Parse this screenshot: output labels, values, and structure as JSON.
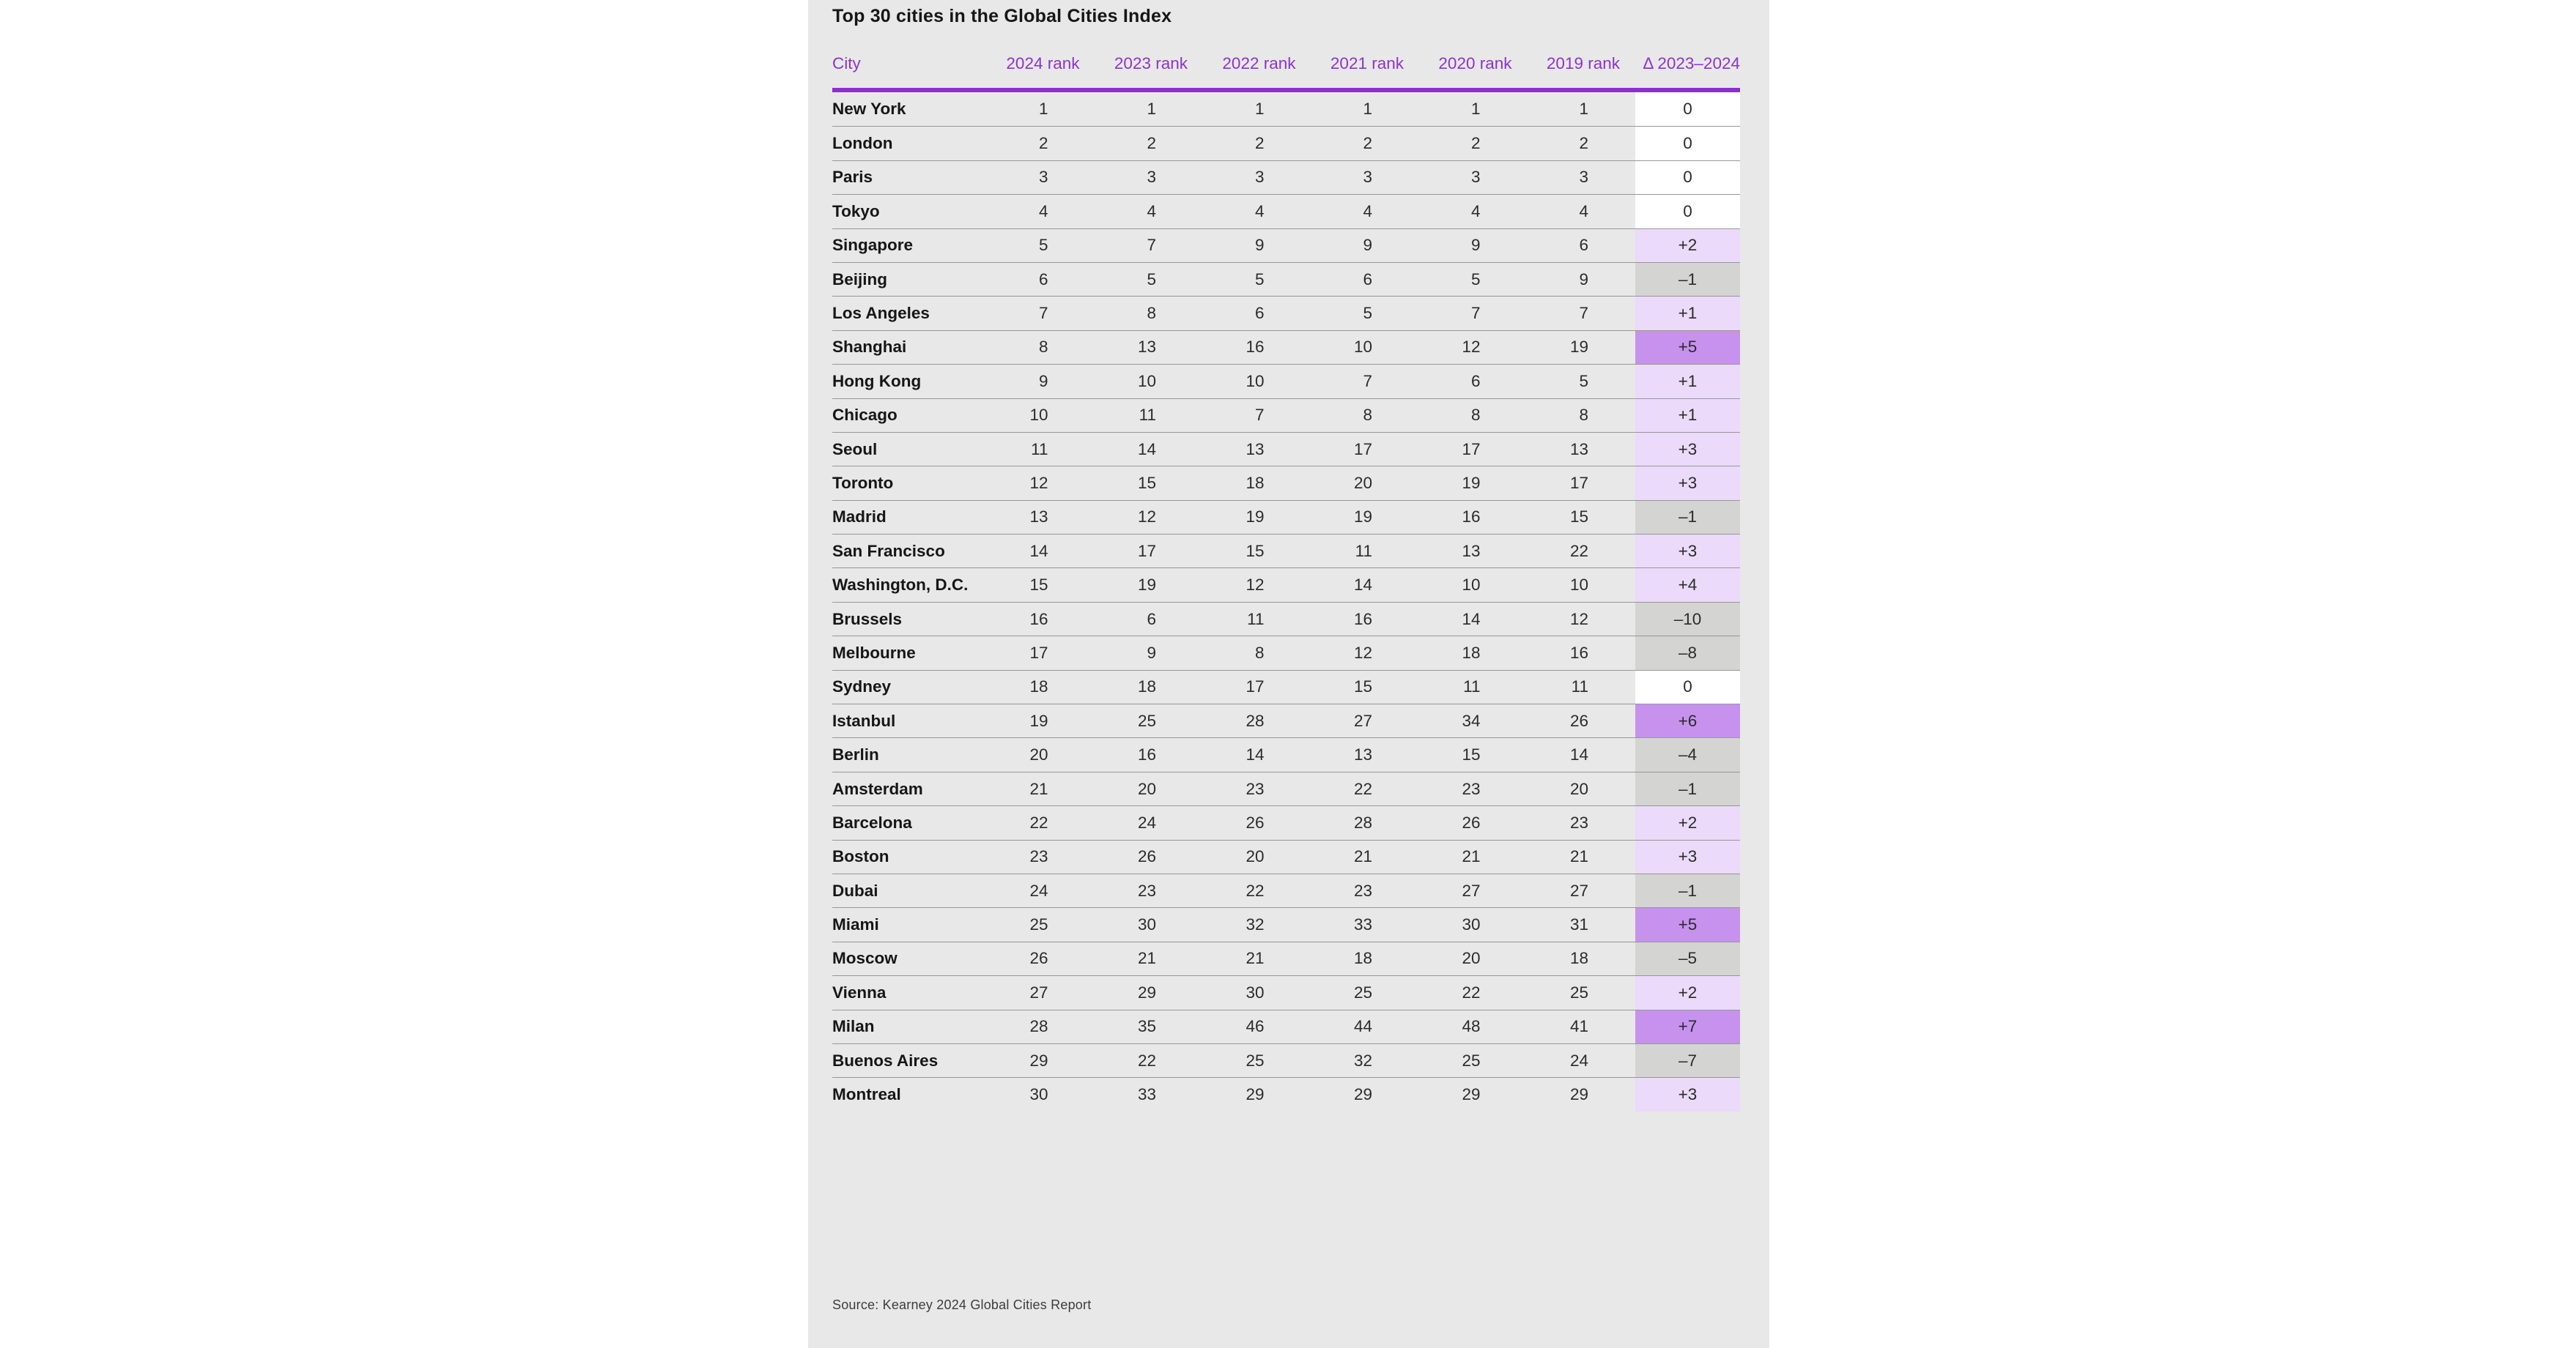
{
  "chart_data": {
    "type": "table",
    "title": "Top 30 cities in the Global Cities Index",
    "columns": [
      "City",
      "2024 rank",
      "2023 rank",
      "2022 rank",
      "2021 rank",
      "2020 rank",
      "2019 rank",
      "Δ 2023–2024"
    ],
    "rows": [
      {
        "city": "New York",
        "ranks": [
          1,
          1,
          1,
          1,
          1,
          1
        ],
        "delta": "0"
      },
      {
        "city": "London",
        "ranks": [
          2,
          2,
          2,
          2,
          2,
          2
        ],
        "delta": "0"
      },
      {
        "city": "Paris",
        "ranks": [
          3,
          3,
          3,
          3,
          3,
          3
        ],
        "delta": "0"
      },
      {
        "city": "Tokyo",
        "ranks": [
          4,
          4,
          4,
          4,
          4,
          4
        ],
        "delta": "0"
      },
      {
        "city": "Singapore",
        "ranks": [
          5,
          7,
          9,
          9,
          9,
          6
        ],
        "delta": "+2"
      },
      {
        "city": "Beijing",
        "ranks": [
          6,
          5,
          5,
          6,
          5,
          9
        ],
        "delta": "–1"
      },
      {
        "city": "Los Angeles",
        "ranks": [
          7,
          8,
          6,
          5,
          7,
          7
        ],
        "delta": "+1"
      },
      {
        "city": "Shanghai",
        "ranks": [
          8,
          13,
          16,
          10,
          12,
          19
        ],
        "delta": "+5"
      },
      {
        "city": "Hong Kong",
        "ranks": [
          9,
          10,
          10,
          7,
          6,
          5
        ],
        "delta": "+1"
      },
      {
        "city": "Chicago",
        "ranks": [
          10,
          11,
          7,
          8,
          8,
          8
        ],
        "delta": "+1"
      },
      {
        "city": "Seoul",
        "ranks": [
          11,
          14,
          13,
          17,
          17,
          13
        ],
        "delta": "+3"
      },
      {
        "city": "Toronto",
        "ranks": [
          12,
          15,
          18,
          20,
          19,
          17
        ],
        "delta": "+3"
      },
      {
        "city": "Madrid",
        "ranks": [
          13,
          12,
          19,
          19,
          16,
          15
        ],
        "delta": "–1"
      },
      {
        "city": "San Francisco",
        "ranks": [
          14,
          17,
          15,
          11,
          13,
          22
        ],
        "delta": "+3"
      },
      {
        "city": "Washington, D.C.",
        "ranks": [
          15,
          19,
          12,
          14,
          10,
          10
        ],
        "delta": "+4"
      },
      {
        "city": "Brussels",
        "ranks": [
          16,
          6,
          11,
          16,
          14,
          12
        ],
        "delta": "–10"
      },
      {
        "city": "Melbourne",
        "ranks": [
          17,
          9,
          8,
          12,
          18,
          16
        ],
        "delta": "–8"
      },
      {
        "city": "Sydney",
        "ranks": [
          18,
          18,
          17,
          15,
          11,
          11
        ],
        "delta": "0"
      },
      {
        "city": "Istanbul",
        "ranks": [
          19,
          25,
          28,
          27,
          34,
          26
        ],
        "delta": "+6"
      },
      {
        "city": "Berlin",
        "ranks": [
          20,
          16,
          14,
          13,
          15,
          14
        ],
        "delta": "–4"
      },
      {
        "city": "Amsterdam",
        "ranks": [
          21,
          20,
          23,
          22,
          23,
          20
        ],
        "delta": "–1"
      },
      {
        "city": "Barcelona",
        "ranks": [
          22,
          24,
          26,
          28,
          26,
          23
        ],
        "delta": "+2"
      },
      {
        "city": "Boston",
        "ranks": [
          23,
          26,
          20,
          21,
          21,
          21
        ],
        "delta": "+3"
      },
      {
        "city": "Dubai",
        "ranks": [
          24,
          23,
          22,
          23,
          27,
          27
        ],
        "delta": "–1"
      },
      {
        "city": "Miami",
        "ranks": [
          25,
          30,
          32,
          33,
          30,
          31
        ],
        "delta": "+5"
      },
      {
        "city": "Moscow",
        "ranks": [
          26,
          21,
          21,
          18,
          20,
          18
        ],
        "delta": "–5"
      },
      {
        "city": "Vienna",
        "ranks": [
          27,
          29,
          30,
          25,
          22,
          25
        ],
        "delta": "+2"
      },
      {
        "city": "Milan",
        "ranks": [
          28,
          35,
          46,
          44,
          48,
          41
        ],
        "delta": "+7"
      },
      {
        "city": "Buenos Aires",
        "ranks": [
          29,
          22,
          25,
          32,
          25,
          24
        ],
        "delta": "–7"
      },
      {
        "city": "Montreal",
        "ranks": [
          30,
          33,
          29,
          29,
          29,
          29
        ],
        "delta": "+3"
      }
    ],
    "source": "Source: Kearney 2024 Global Cities Report",
    "layout_hints": {
      "delta_color_rule": "0 = white, +1 to +4 = light lavender, +5 and up = medium purple, negative = gray"
    }
  },
  "colors": {
    "panel_bg": "#E8E8E8",
    "header_purple": "#8C33D1",
    "underline": "#8A2FD0",
    "separator": "#979797",
    "delta_zero_bg": "#FFFFFF",
    "delta_up_small_bg": "#EBDAF9",
    "delta_up_big_bg": "#C692EE",
    "delta_down_bg": "#D4D4D2",
    "text_dark": "#161616",
    "num_color": "#2B2B2B"
  }
}
